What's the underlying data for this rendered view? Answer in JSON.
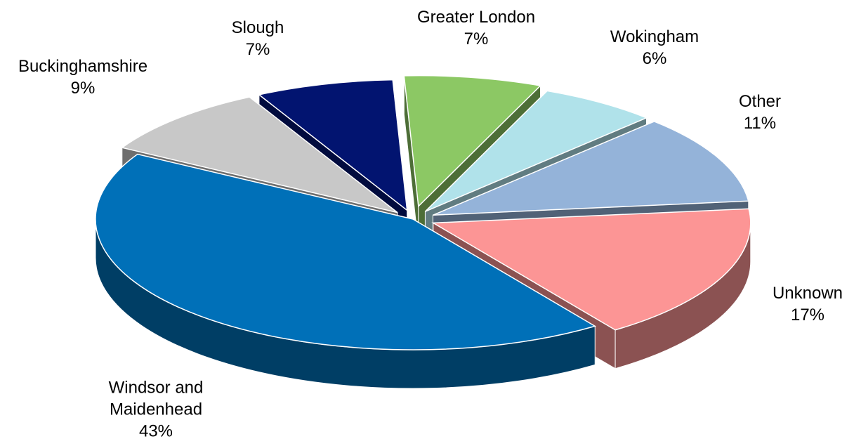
{
  "chart_data": {
    "type": "pie3d",
    "categories": [
      "Windsor and Maidenhead",
      "Buckinghamshire",
      "Slough",
      "Greater London",
      "Wokingham",
      "Other",
      "Unknown"
    ],
    "values": [
      43,
      9,
      7,
      7,
      6,
      11,
      17
    ],
    "value_labels": [
      "43%",
      "9%",
      "7%",
      "7%",
      "6%",
      "11%",
      "17%"
    ],
    "colors": [
      "#0070b8",
      "#c8c8c8",
      "#021470",
      "#8cc864",
      "#b0e2ea",
      "#94b3d9",
      "#fc9595"
    ]
  }
}
